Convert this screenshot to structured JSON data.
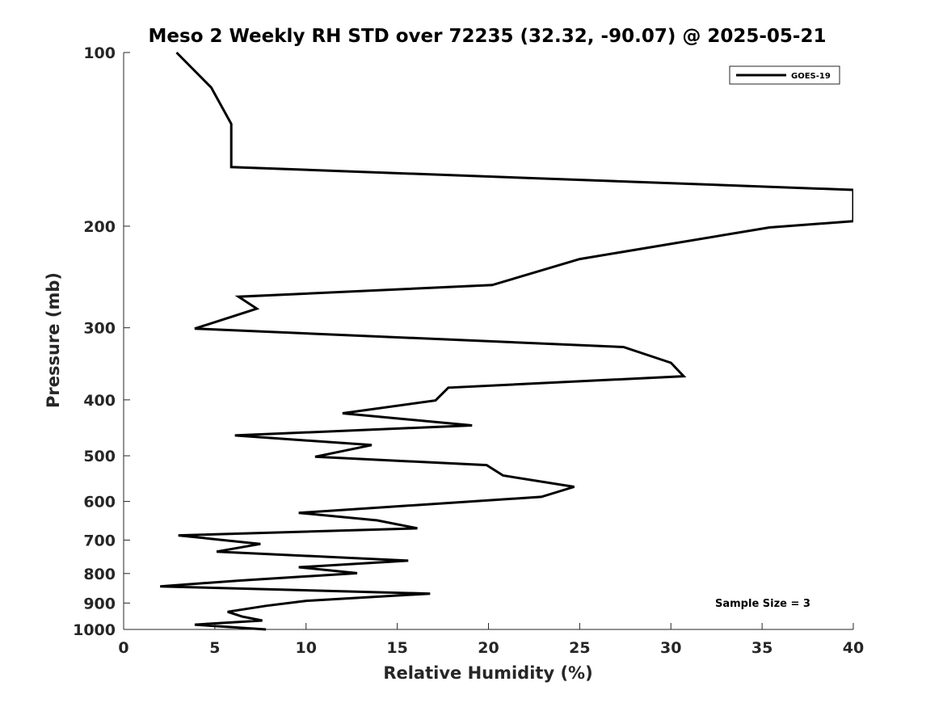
{
  "chart_data": {
    "type": "line",
    "title": "Meso 2 Weekly RH STD over 72235 (32.32, -90.07) @ 2025-05-21",
    "xlabel": "Relative Humidity (%)",
    "ylabel": "Pressure (mb)",
    "xlim": [
      0,
      40
    ],
    "ylim": [
      100,
      1000
    ],
    "yscale": "log",
    "y_reversed": true,
    "x_ticks": [
      0,
      5,
      10,
      15,
      20,
      25,
      30,
      35,
      40
    ],
    "x_tick_labels": [
      "0",
      "5",
      "10",
      "15",
      "20",
      "25",
      "30",
      "35",
      "40"
    ],
    "y_ticks": [
      100,
      200,
      300,
      400,
      500,
      600,
      700,
      800,
      900,
      1000
    ],
    "y_tick_labels": [
      "100",
      "200",
      "300",
      "400",
      "500",
      "600",
      "700",
      "800",
      "900",
      "1000"
    ],
    "grid": false,
    "legend": {
      "position": "top-right",
      "entries": [
        "GOES-19"
      ]
    },
    "annotation": "Sample Size = 3",
    "series": [
      {
        "name": "GOES-19",
        "color": "#000000",
        "points": [
          [
            2.9,
            100
          ],
          [
            4.8,
            115
          ],
          [
            5.9,
            133
          ],
          [
            5.9,
            158
          ],
          [
            40,
            173
          ],
          [
            40,
            196
          ],
          [
            35.4,
            201
          ],
          [
            25.0,
            228
          ],
          [
            20.2,
            253
          ],
          [
            6.3,
            265
          ],
          [
            7.3,
            278
          ],
          [
            3.9,
            301
          ],
          [
            27.4,
            324
          ],
          [
            30.0,
            345
          ],
          [
            30.7,
            364
          ],
          [
            17.8,
            381
          ],
          [
            17.1,
            401
          ],
          [
            12.0,
            422
          ],
          [
            19.1,
            443
          ],
          [
            6.1,
            461
          ],
          [
            13.6,
            479
          ],
          [
            10.5,
            502
          ],
          [
            19.9,
            519
          ],
          [
            20.8,
            541
          ],
          [
            24.7,
            566
          ],
          [
            22.9,
            589
          ],
          [
            9.6,
            628
          ],
          [
            13.9,
            647
          ],
          [
            16.1,
            668
          ],
          [
            3.0,
            687
          ],
          [
            7.5,
            711
          ],
          [
            5.1,
            733
          ],
          [
            15.6,
            760
          ],
          [
            9.6,
            780
          ],
          [
            12.8,
            799
          ],
          [
            6.3,
            823
          ],
          [
            2.0,
            842
          ],
          [
            16.8,
            867
          ],
          [
            10.0,
            892
          ],
          [
            7.8,
            910
          ],
          [
            5.7,
            932
          ],
          [
            6.5,
            950
          ],
          [
            7.6,
            965
          ],
          [
            3.9,
            981
          ],
          [
            7.8,
            1000
          ]
        ]
      }
    ]
  }
}
